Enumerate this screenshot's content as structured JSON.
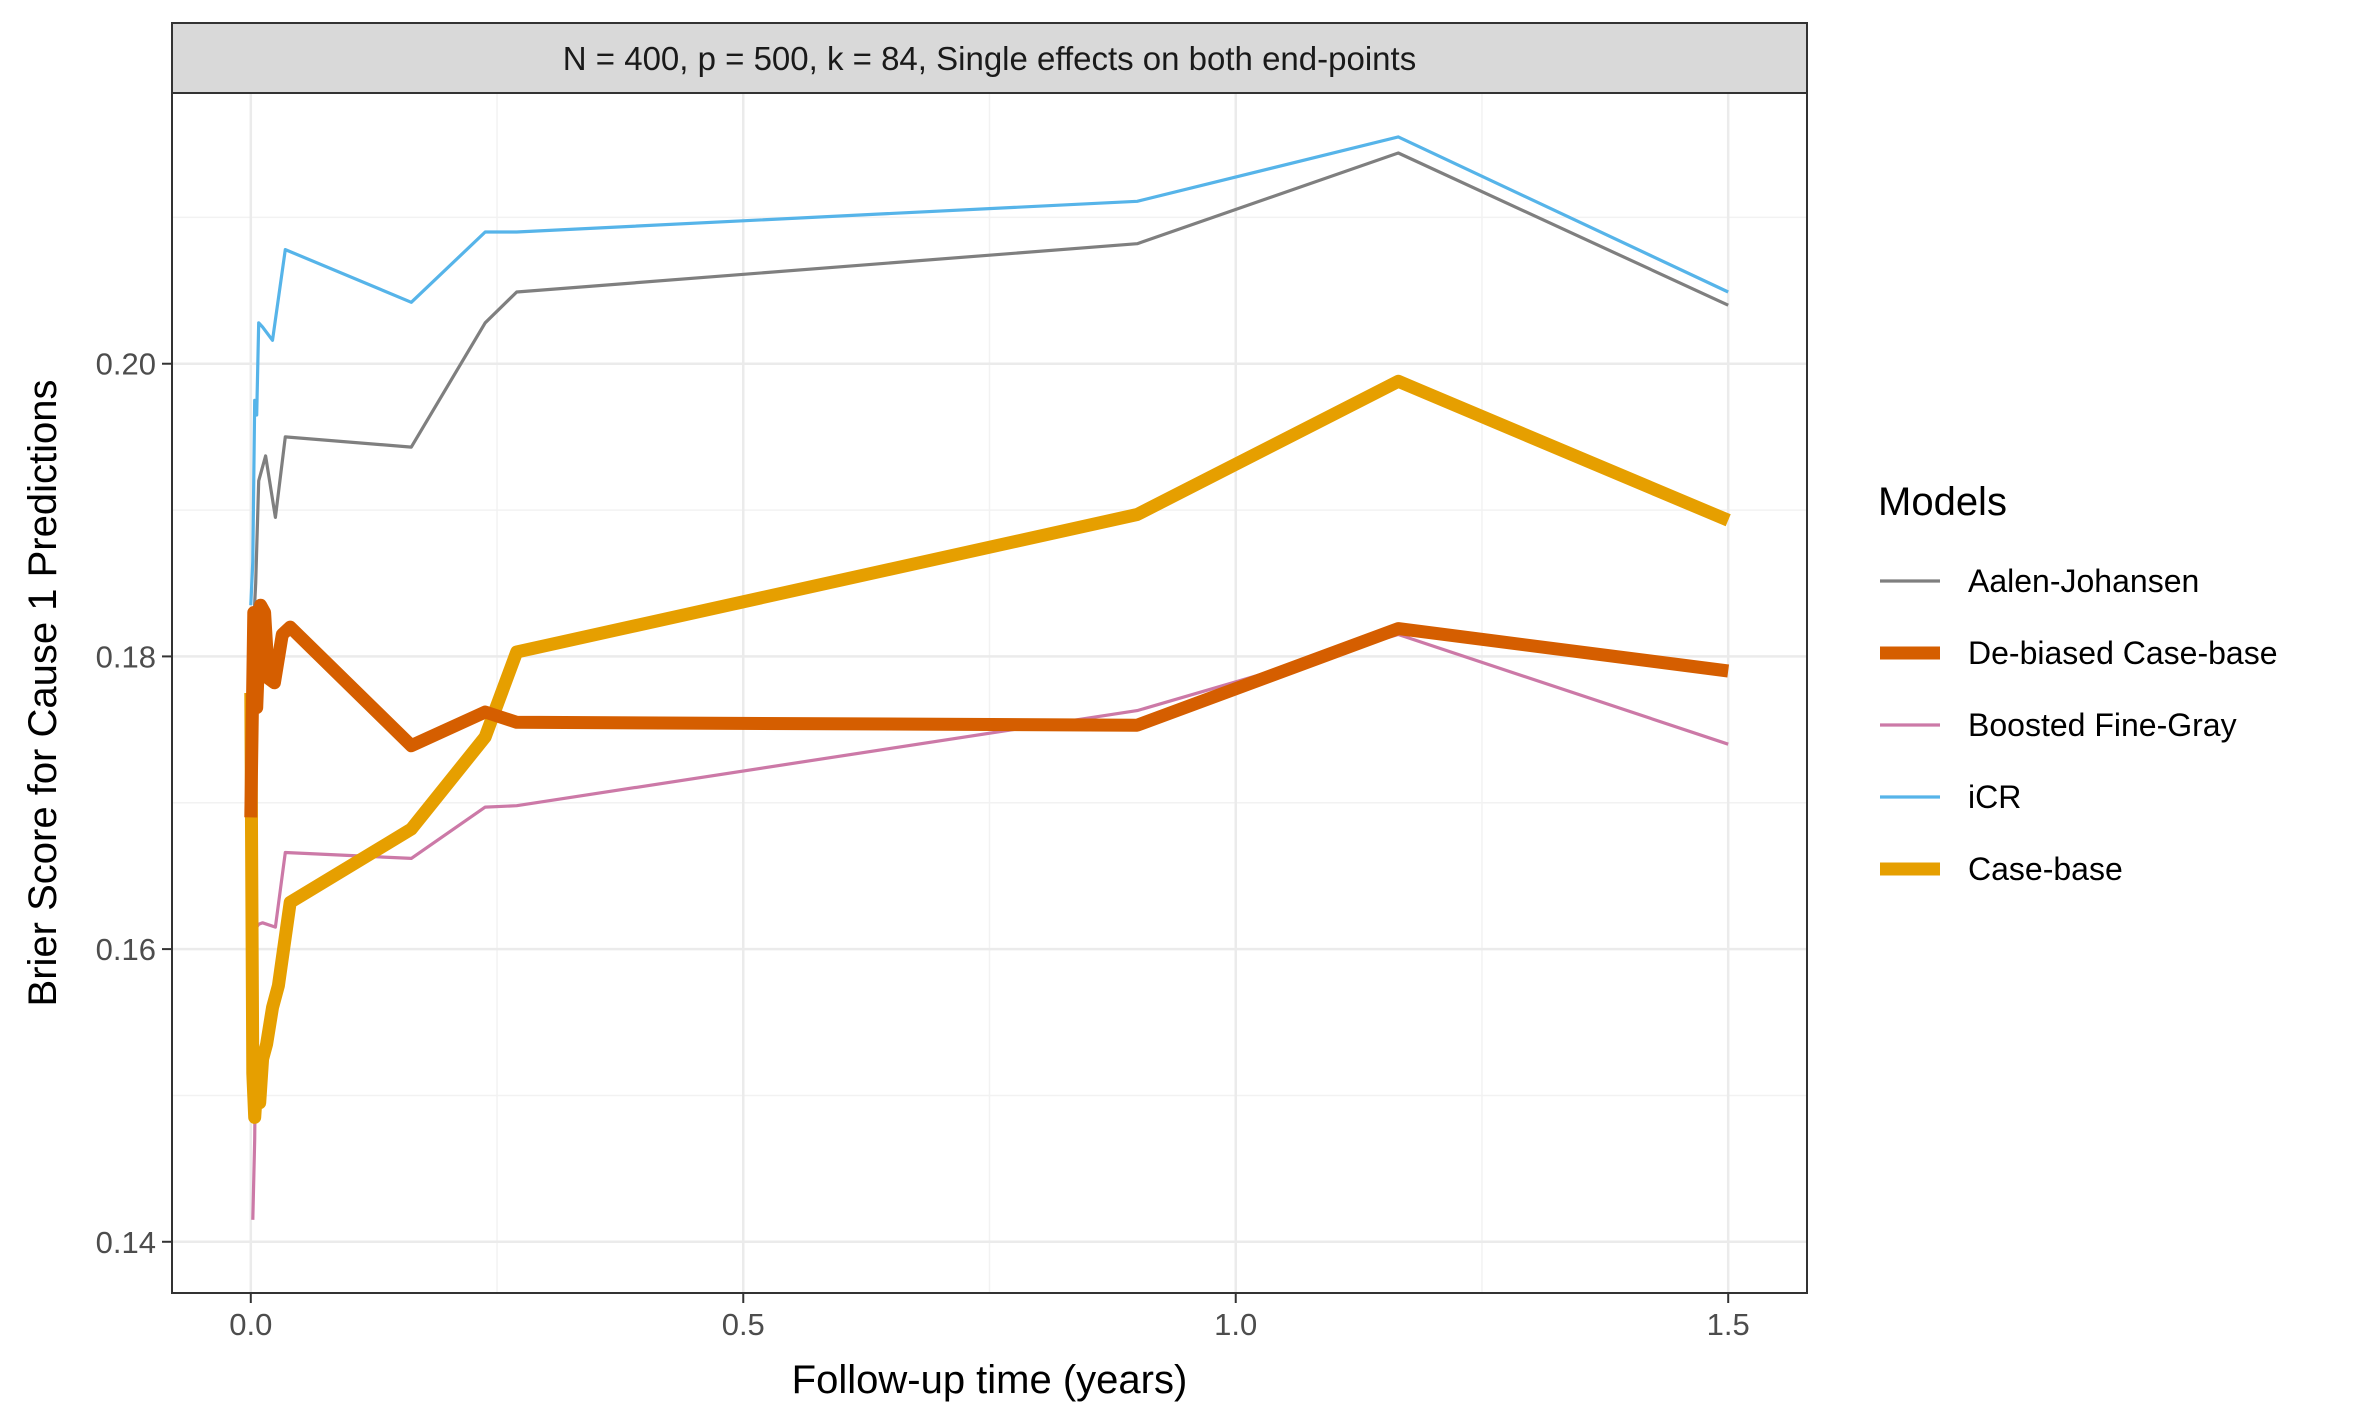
{
  "chart_data": {
    "type": "line",
    "strip_title": "N = 400, p = 500, k = 84, Single effects on both end-points",
    "xlabel": "Follow-up time (years)",
    "ylabel": "Brier Score for Cause 1 Predictions",
    "xlim": [
      -0.08,
      1.58
    ],
    "ylim": [
      0.1365,
      0.2185
    ],
    "x_ticks": [
      0.0,
      0.5,
      1.0,
      1.5
    ],
    "x_tick_labels": [
      "0.0",
      "0.5",
      "1.0",
      "1.5"
    ],
    "y_ticks": [
      0.14,
      0.16,
      0.18,
      0.2
    ],
    "y_tick_labels": [
      "0.14",
      "0.16",
      "0.18",
      "0.20"
    ],
    "grid": true,
    "legend_title": "Models",
    "legend_position": "right",
    "series": [
      {
        "name": "Aalen-Johansen",
        "color": "#7f7f7f",
        "width": "thin",
        "x": [
          0.0,
          0.002,
          0.005,
          0.008,
          0.015,
          0.025,
          0.035,
          0.163,
          0.238,
          0.27,
          0.9,
          1.165,
          1.5
        ],
        "y": [
          0.161,
          0.181,
          0.185,
          0.192,
          0.1937,
          0.1895,
          0.195,
          0.1943,
          0.2028,
          0.2049,
          0.2082,
          0.2144,
          0.204
        ]
      },
      {
        "name": "De-biased Case-base",
        "color": "#d55e00",
        "width": "thick",
        "x": [
          0.0,
          0.003,
          0.006,
          0.01,
          0.014,
          0.018,
          0.024,
          0.032,
          0.04,
          0.163,
          0.238,
          0.27,
          0.9,
          1.165,
          1.5
        ],
        "y": [
          0.169,
          0.183,
          0.1765,
          0.1835,
          0.183,
          0.1785,
          0.1782,
          0.1815,
          0.182,
          0.1739,
          0.1762,
          0.1755,
          0.1753,
          0.1819,
          0.179
        ]
      },
      {
        "name": "Boosted Fine-Gray",
        "color": "#cc79a7",
        "width": "thin",
        "x": [
          0.002,
          0.004,
          0.006,
          0.008,
          0.012,
          0.025,
          0.035,
          0.163,
          0.238,
          0.27,
          0.9,
          1.165,
          1.5
        ],
        "y": [
          0.1415,
          0.147,
          0.1615,
          0.1617,
          0.1618,
          0.1615,
          0.1666,
          0.1662,
          0.1697,
          0.1698,
          0.1763,
          0.1815,
          0.174
        ]
      },
      {
        "name": "iCR",
        "color": "#56b4e9",
        "width": "thin",
        "x": [
          0.0,
          0.002,
          0.004,
          0.006,
          0.008,
          0.012,
          0.022,
          0.035,
          0.163,
          0.238,
          0.27,
          0.9,
          1.165,
          1.5
        ],
        "y": [
          0.1835,
          0.1865,
          0.1975,
          0.1965,
          0.2028,
          0.2025,
          0.2016,
          0.2078,
          0.2042,
          0.209,
          0.209,
          0.2111,
          0.2155,
          0.2049
        ]
      },
      {
        "name": "Case-base",
        "color": "#e69f00",
        "width": "thick",
        "x": [
          0.0,
          0.002,
          0.004,
          0.006,
          0.009,
          0.012,
          0.016,
          0.022,
          0.028,
          0.04,
          0.163,
          0.238,
          0.27,
          0.9,
          1.165,
          1.5
        ],
        "y": [
          0.1775,
          0.1515,
          0.1485,
          0.1505,
          0.1495,
          0.1525,
          0.1535,
          0.156,
          0.1575,
          0.1632,
          0.1682,
          0.1745,
          0.1803,
          0.1897,
          0.1988,
          0.1893
        ]
      }
    ]
  }
}
